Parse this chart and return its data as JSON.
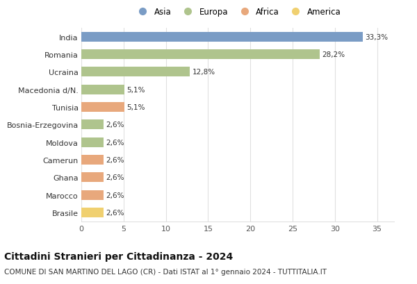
{
  "countries": [
    "India",
    "Romania",
    "Ucraina",
    "Macedonia d/N.",
    "Tunisia",
    "Bosnia-Erzegovina",
    "Moldova",
    "Camerun",
    "Ghana",
    "Marocco",
    "Brasile"
  ],
  "values": [
    33.3,
    28.2,
    12.8,
    5.1,
    5.1,
    2.6,
    2.6,
    2.6,
    2.6,
    2.6,
    2.6
  ],
  "continents": [
    "Asia",
    "Europa",
    "Europa",
    "Europa",
    "Africa",
    "Europa",
    "Europa",
    "Africa",
    "Africa",
    "Africa",
    "America"
  ],
  "colors": {
    "Asia": "#7a9cc5",
    "Europa": "#afc48d",
    "Africa": "#e8a87c",
    "America": "#f0d070"
  },
  "labels": [
    "33,3%",
    "28,2%",
    "12,8%",
    "5,1%",
    "5,1%",
    "2,6%",
    "2,6%",
    "2,6%",
    "2,6%",
    "2,6%",
    "2,6%"
  ],
  "xlim": [
    0,
    37
  ],
  "xticks": [
    0,
    5,
    10,
    15,
    20,
    25,
    30,
    35
  ],
  "legend_items": [
    "Asia",
    "Europa",
    "Africa",
    "America"
  ],
  "title": "Cittadini Stranieri per Cittadinanza - 2024",
  "subtitle": "COMUNE DI SAN MARTINO DEL LAGO (CR) - Dati ISTAT al 1° gennaio 2024 - TUTTITALIA.IT",
  "title_fontsize": 10,
  "subtitle_fontsize": 7.5,
  "bar_height": 0.55,
  "background_color": "#ffffff",
  "grid_color": "#e0e0e0"
}
